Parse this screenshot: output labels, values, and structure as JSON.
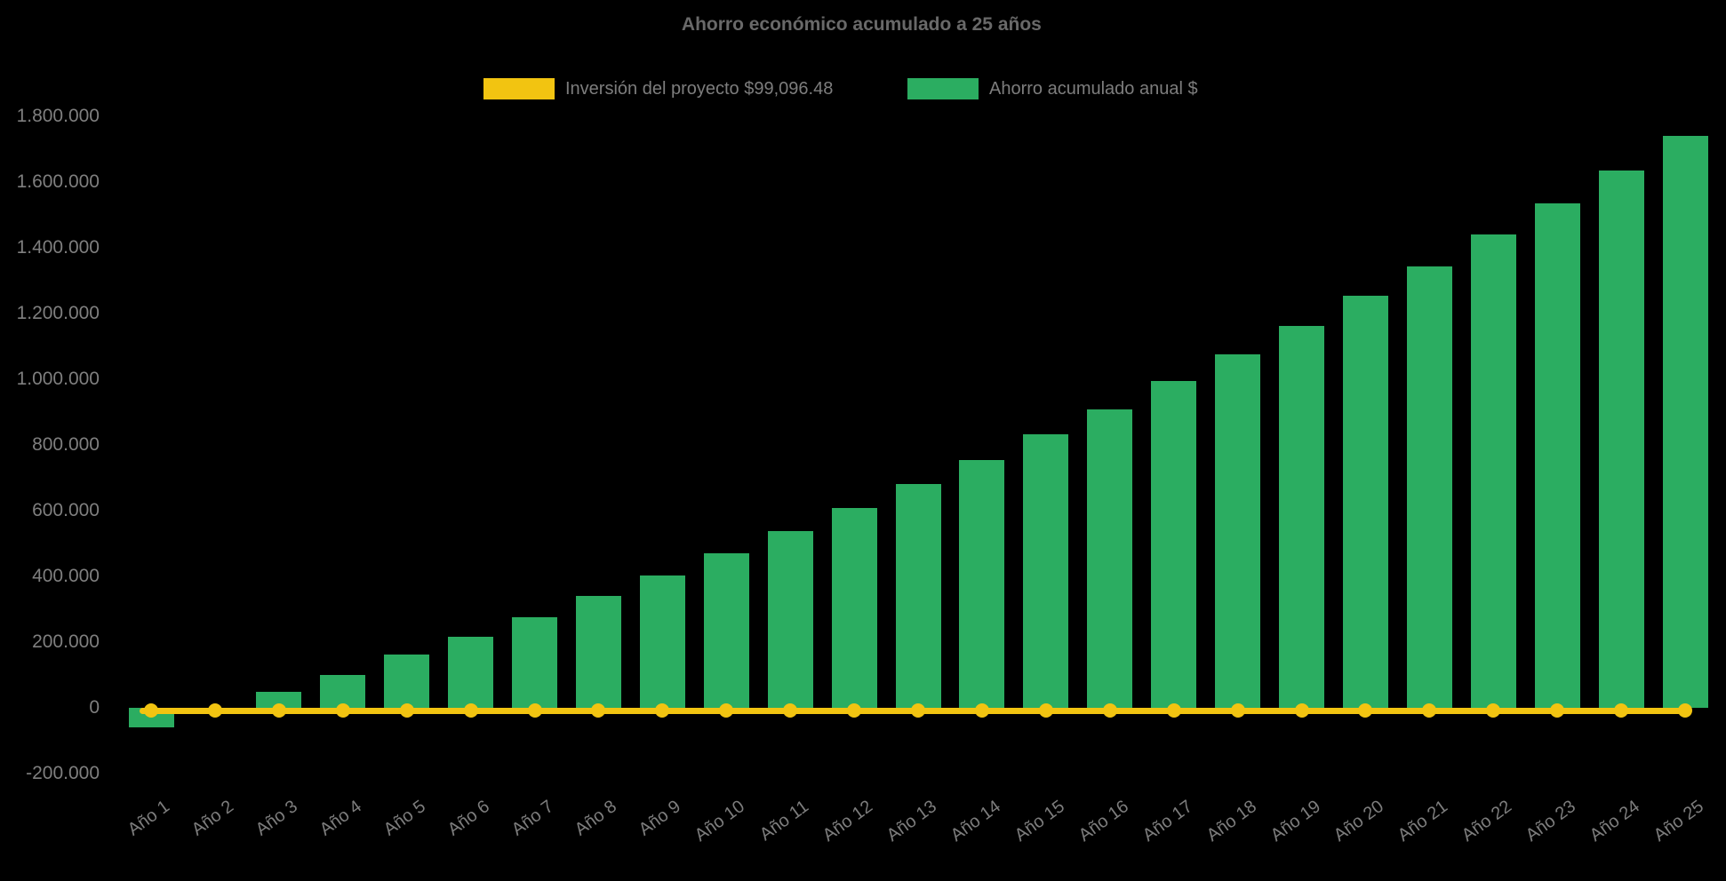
{
  "chart": {
    "title": "Ahorro económico acumulado a 25 años",
    "background": "#000000"
  },
  "legend": {
    "position": "top",
    "investment": {
      "label": "Inversión del proyecto $99,096.48",
      "color": "#F2C411"
    },
    "savings": {
      "label": "Ahorro acumulado anual $",
      "color": "#2BAD61"
    }
  },
  "chart_data": {
    "type": "bar",
    "title": "Ahorro económico acumulado a 25 años",
    "categories": [
      "Año 1",
      "Año 2",
      "Año 3",
      "Año 4",
      "Año 5",
      "Año 6",
      "Año 7",
      "Año 8",
      "Año 9",
      "Año 10",
      "Año 11",
      "Año 12",
      "Año 13",
      "Año 14",
      "Año 15",
      "Año 16",
      "Año 17",
      "Año 18",
      "Año 19",
      "Año 20",
      "Año 21",
      "Año 22",
      "Año 23",
      "Año 24",
      "Año 25"
    ],
    "series": [
      {
        "name": "Ahorro acumulado anual $",
        "type": "bar",
        "color": "#2BAD61",
        "values": [
          -60000,
          -10000,
          48000,
          100000,
          161000,
          217000,
          277000,
          340000,
          403000,
          470000,
          538000,
          608000,
          681000,
          755000,
          832000,
          909000,
          995000,
          1076000,
          1161000,
          1253000,
          1343000,
          1440000,
          1534000,
          1635000,
          1740000
        ]
      },
      {
        "name": "Inversión del proyecto $99,096.48",
        "type": "line",
        "color": "#F2C411",
        "marker": "circle",
        "constant_value": 0
      }
    ],
    "ylim": [
      -200000,
      1800000
    ],
    "yticks": [
      {
        "label": "1.800.000",
        "value": 1800000
      },
      {
        "label": "1.600.000",
        "value": 1600000
      },
      {
        "label": "1.400.000",
        "value": 1400000
      },
      {
        "label": "1.200.000",
        "value": 1200000
      },
      {
        "label": "1.000.000",
        "value": 1000000
      },
      {
        "label": "800.000",
        "value": 800000
      },
      {
        "label": "600.000",
        "value": 600000
      },
      {
        "label": "400.000",
        "value": 400000
      },
      {
        "label": "200.000",
        "value": 200000
      },
      {
        "label": "0",
        "value": 0
      },
      {
        "label": "-200.000",
        "value": -200000
      }
    ],
    "grid": false,
    "legend_position": "top",
    "x_tick_rotation_deg": -36
  }
}
